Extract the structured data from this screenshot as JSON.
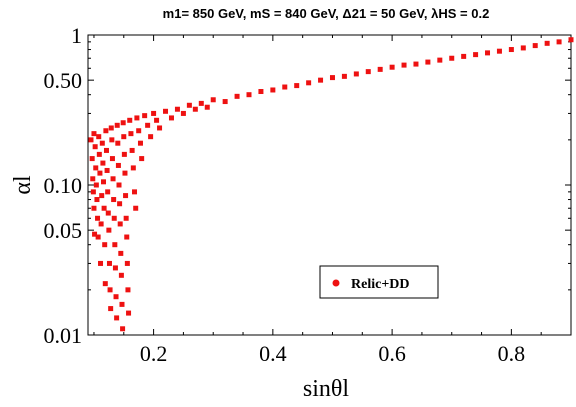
{
  "chart_data": {
    "type": "scatter",
    "title": "m1= 850 GeV, mS = 840 GeV, Δ21 = 50 GeV, λHS = 0.2",
    "xlabel": "sinθl",
    "ylabel": "αl",
    "xlim": [
      0.09,
      0.9
    ],
    "ylim": [
      0.01,
      1
    ],
    "yscale": "log",
    "x_ticks": [
      "0.2",
      "0.4",
      "0.6",
      "0.8"
    ],
    "y_ticks": [
      "0.01",
      "0.05",
      "0.10",
      "0.50",
      "1"
    ],
    "grid": false,
    "legend_position": "lower-right",
    "marker_color": "#ee1111",
    "series": [
      {
        "name": "Relic+DD",
        "points": [
          [
            0.095,
            0.2
          ],
          [
            0.097,
            0.15
          ],
          [
            0.098,
            0.11
          ],
          [
            0.099,
            0.09
          ],
          [
            0.1,
            0.22
          ],
          [
            0.1,
            0.07
          ],
          [
            0.101,
            0.047
          ],
          [
            0.102,
            0.18
          ],
          [
            0.103,
            0.13
          ],
          [
            0.104,
            0.1
          ],
          [
            0.105,
            0.08
          ],
          [
            0.106,
            0.06
          ],
          [
            0.107,
            0.045
          ],
          [
            0.108,
            0.21
          ],
          [
            0.109,
            0.16
          ],
          [
            0.11,
            0.12
          ],
          [
            0.111,
            0.03
          ],
          [
            0.112,
            0.055
          ],
          [
            0.113,
            0.085
          ],
          [
            0.114,
            0.19
          ],
          [
            0.115,
            0.14
          ],
          [
            0.116,
            0.105
          ],
          [
            0.117,
            0.07
          ],
          [
            0.118,
            0.04
          ],
          [
            0.119,
            0.022
          ],
          [
            0.12,
            0.23
          ],
          [
            0.121,
            0.17
          ],
          [
            0.122,
            0.125
          ],
          [
            0.123,
            0.09
          ],
          [
            0.124,
            0.065
          ],
          [
            0.125,
            0.05
          ],
          [
            0.126,
            0.03
          ],
          [
            0.127,
            0.02
          ],
          [
            0.128,
            0.015
          ],
          [
            0.129,
            0.24
          ],
          [
            0.13,
            0.2
          ],
          [
            0.131,
            0.15
          ],
          [
            0.132,
            0.11
          ],
          [
            0.133,
            0.08
          ],
          [
            0.134,
            0.06
          ],
          [
            0.135,
            0.04
          ],
          [
            0.136,
            0.028
          ],
          [
            0.137,
            0.018
          ],
          [
            0.138,
            0.013
          ],
          [
            0.139,
            0.25
          ],
          [
            0.14,
            0.19
          ],
          [
            0.141,
            0.135
          ],
          [
            0.142,
            0.1
          ],
          [
            0.143,
            0.075
          ],
          [
            0.144,
            0.055
          ],
          [
            0.145,
            0.035
          ],
          [
            0.146,
            0.025
          ],
          [
            0.147,
            0.016
          ],
          [
            0.148,
            0.011
          ],
          [
            0.149,
            0.26
          ],
          [
            0.15,
            0.21
          ],
          [
            0.151,
            0.16
          ],
          [
            0.152,
            0.12
          ],
          [
            0.153,
            0.085
          ],
          [
            0.154,
            0.06
          ],
          [
            0.155,
            0.045
          ],
          [
            0.156,
            0.03
          ],
          [
            0.157,
            0.02
          ],
          [
            0.158,
            0.014
          ],
          [
            0.16,
            0.27
          ],
          [
            0.162,
            0.22
          ],
          [
            0.164,
            0.17
          ],
          [
            0.166,
            0.13
          ],
          [
            0.168,
            0.09
          ],
          [
            0.17,
            0.07
          ],
          [
            0.172,
            0.28
          ],
          [
            0.175,
            0.23
          ],
          [
            0.178,
            0.19
          ],
          [
            0.18,
            0.15
          ],
          [
            0.185,
            0.29
          ],
          [
            0.19,
            0.25
          ],
          [
            0.195,
            0.21
          ],
          [
            0.2,
            0.3
          ],
          [
            0.205,
            0.27
          ],
          [
            0.21,
            0.24
          ],
          [
            0.22,
            0.31
          ],
          [
            0.23,
            0.28
          ],
          [
            0.24,
            0.32
          ],
          [
            0.25,
            0.3
          ],
          [
            0.26,
            0.34
          ],
          [
            0.27,
            0.32
          ],
          [
            0.28,
            0.35
          ],
          [
            0.29,
            0.33
          ],
          [
            0.3,
            0.37
          ],
          [
            0.32,
            0.36
          ],
          [
            0.34,
            0.39
          ],
          [
            0.36,
            0.4
          ],
          [
            0.38,
            0.42
          ],
          [
            0.4,
            0.43
          ],
          [
            0.42,
            0.45
          ],
          [
            0.44,
            0.46
          ],
          [
            0.46,
            0.48
          ],
          [
            0.48,
            0.5
          ],
          [
            0.5,
            0.52
          ],
          [
            0.52,
            0.53
          ],
          [
            0.54,
            0.55
          ],
          [
            0.56,
            0.57
          ],
          [
            0.58,
            0.59
          ],
          [
            0.6,
            0.61
          ],
          [
            0.62,
            0.63
          ],
          [
            0.64,
            0.64
          ],
          [
            0.66,
            0.66
          ],
          [
            0.68,
            0.68
          ],
          [
            0.7,
            0.7
          ],
          [
            0.72,
            0.72
          ],
          [
            0.74,
            0.74
          ],
          [
            0.76,
            0.76
          ],
          [
            0.78,
            0.78
          ],
          [
            0.8,
            0.8
          ],
          [
            0.82,
            0.82
          ],
          [
            0.84,
            0.85
          ],
          [
            0.86,
            0.88
          ],
          [
            0.88,
            0.9
          ],
          [
            0.9,
            0.93
          ]
        ]
      }
    ]
  }
}
